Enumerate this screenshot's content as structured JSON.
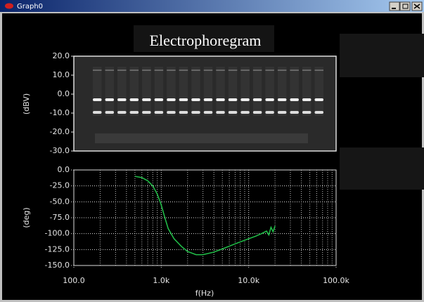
{
  "window": {
    "title": "Graph0"
  },
  "chart_data": [
    {
      "type": "image",
      "title": "Electrophoregram",
      "ylabel": "(dBV)",
      "ylim": [
        -30,
        20
      ],
      "yticks": [
        {
          "value": 20,
          "label": "20.0"
        },
        {
          "value": 10,
          "label": "10.0"
        },
        {
          "value": 0,
          "label": "0.0"
        },
        {
          "value": -10,
          "label": "-10.0"
        },
        {
          "value": -20,
          "label": "-20.0"
        },
        {
          "value": -30,
          "label": "-30.0"
        }
      ]
    },
    {
      "type": "line",
      "xlabel": "f(Hz)",
      "ylabel": "(deg)",
      "log_x": true,
      "grid": true,
      "color": "#22c24a",
      "xlim": [
        100,
        100000
      ],
      "xticks": [
        {
          "value": 100,
          "label": "100.0"
        },
        {
          "value": 1000,
          "label": "1.0k"
        },
        {
          "value": 10000,
          "label": "10.0k"
        },
        {
          "value": 100000,
          "label": "100.0k"
        }
      ],
      "ylim": [
        -150,
        0
      ],
      "yticks": [
        {
          "value": 0,
          "label": "0.0"
        },
        {
          "value": -25,
          "label": "-25.0"
        },
        {
          "value": -50,
          "label": "-50.0"
        },
        {
          "value": -75,
          "label": "-75.0"
        },
        {
          "value": -100,
          "label": "-100.0"
        },
        {
          "value": -125,
          "label": "-125.0"
        },
        {
          "value": -150,
          "label": "-150.0"
        }
      ],
      "x": [
        500,
        600,
        700,
        800,
        900,
        1000,
        1100,
        1200,
        1400,
        1700,
        2000,
        2500,
        3000,
        4000,
        5000,
        7000,
        10000,
        12000,
        14000,
        16000,
        17000,
        18000,
        19000,
        20000
      ],
      "values": [
        -10,
        -12,
        -17,
        -25,
        -38,
        -55,
        -75,
        -92,
        -108,
        -120,
        -128,
        -133,
        -133,
        -129,
        -124,
        -116,
        -108,
        -104,
        -100,
        -96,
        -102,
        -90,
        -97,
        -88
      ]
    }
  ]
}
